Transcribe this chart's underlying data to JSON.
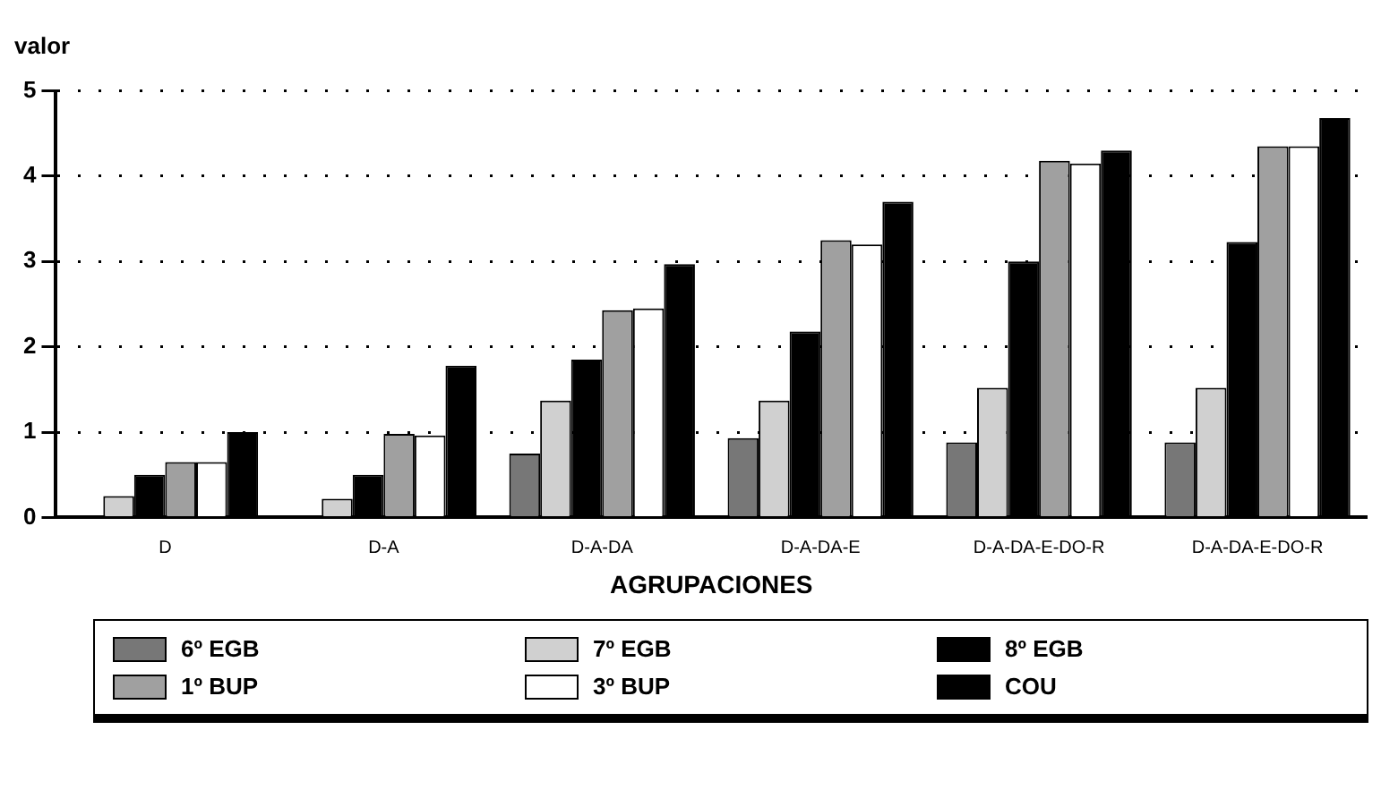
{
  "chart_data": {
    "type": "bar",
    "ylabel": "valor",
    "xlabel": "AGRUPACIONES",
    "categories": [
      "D",
      "D-A",
      "D-A-DA",
      "D-A-DA-E",
      "D-A-DA-E-DO-R",
      "D-A-DA-E-DO-R"
    ],
    "series": [
      {
        "name": "6º EGB",
        "color": "#777777",
        "values": [
          0,
          0,
          0.75,
          0.93,
          0.88,
          0.88
        ]
      },
      {
        "name": "7º EGB",
        "color": "#d0d0d0",
        "values": [
          0.25,
          0.22,
          1.37,
          1.37,
          1.52,
          1.52
        ]
      },
      {
        "name": "8º EGB",
        "color": "#000000",
        "values": [
          0.5,
          0.5,
          1.85,
          2.18,
          3.0,
          3.23
        ]
      },
      {
        "name": "1º BUP",
        "color": "#a0a0a0",
        "values": [
          0.65,
          0.98,
          2.43,
          3.25,
          4.18,
          4.35
        ]
      },
      {
        "name": "3º BUP",
        "color": "#ffffff",
        "values": [
          0.65,
          0.96,
          2.45,
          3.2,
          4.15,
          4.35
        ]
      },
      {
        "name": "COU",
        "color": "#000000",
        "values": [
          1.0,
          1.78,
          2.97,
          3.7,
          4.3,
          4.68
        ]
      }
    ],
    "ylim": [
      0,
      5
    ],
    "yticks": [
      0,
      1,
      2,
      3,
      4,
      5
    ],
    "grid": "y",
    "legend": "bottom"
  }
}
